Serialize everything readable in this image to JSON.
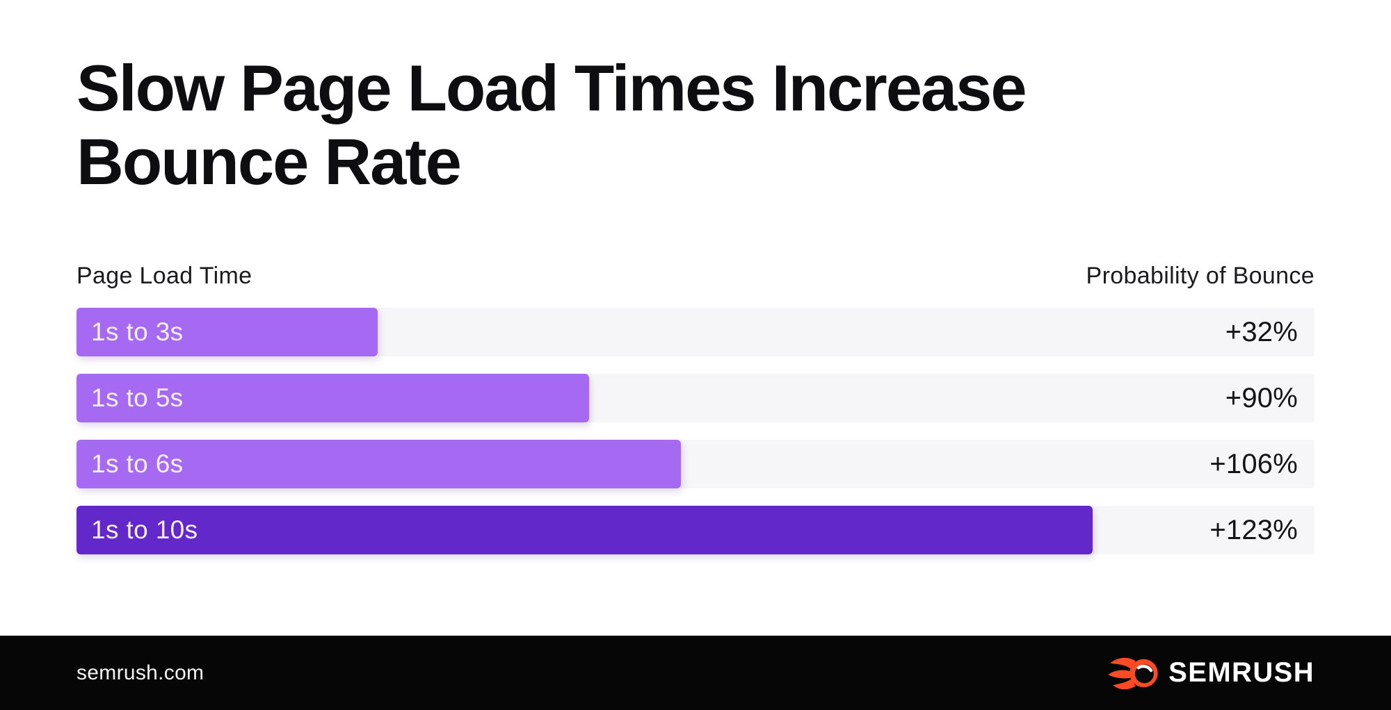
{
  "title": {
    "full": "Slow Page Load Times Increase Bounce Rate",
    "line1": "Slow Page Load Times Increase",
    "line2": "Bounce Rate"
  },
  "axis": {
    "left_label": "Page Load Time",
    "right_label": "Probability of Bounce"
  },
  "chart_data": {
    "type": "bar",
    "orientation": "horizontal",
    "title": "Slow Page Load Times Increase Bounce Rate",
    "xlabel": "Page Load Time",
    "ylabel": "Probability of Bounce",
    "categories": [
      "1s to 3s",
      "1s to 5s",
      "1s to 6s",
      "1s to 10s"
    ],
    "values": [
      32,
      90,
      106,
      123
    ],
    "value_labels": [
      "+32%",
      "+90%",
      "+106%",
      "+123%"
    ],
    "bar_width_pct": [
      24.3,
      41.4,
      48.8,
      82.1
    ],
    "bar_colors": [
      "#a669f1",
      "#a669f1",
      "#a669f1",
      "#6328c9"
    ],
    "track_color": "#f6f5f7",
    "grid": false,
    "legend": false
  },
  "colors": {
    "light_purple": "#a669f1",
    "dark_purple": "#6328c9",
    "track_gray": "#f6f5f7",
    "footer_black": "#060606",
    "brand_orange": "#ff4b24",
    "text_dark": "#0e0e10"
  },
  "footer": {
    "website": "semrush.com",
    "brand": "SEMRUSH",
    "logo_icon": "semrush-flame-icon"
  }
}
